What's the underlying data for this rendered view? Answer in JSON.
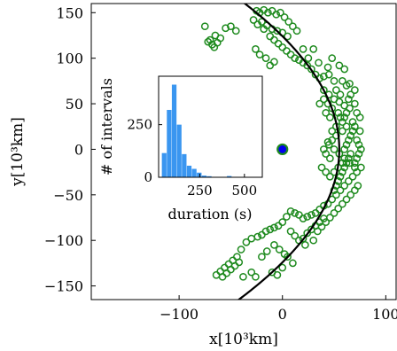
{
  "chart_data": [
    {
      "type": "scatter",
      "xlabel": "x[10³km]",
      "ylabel": "y[10³km]",
      "xlim": [
        -185,
        110
      ],
      "ylim": [
        -165,
        160
      ],
      "xticks": [
        -100,
        0,
        100
      ],
      "yticks": [
        -150,
        -100,
        -50,
        0,
        50,
        100,
        150
      ],
      "xtick_labels": [
        "−100",
        "0",
        "100"
      ],
      "ytick_labels": [
        "−150",
        "−100",
        "−50",
        "0",
        "50",
        "100",
        "150"
      ],
      "grid": false,
      "colors": {
        "points": "#1e8a1e",
        "curve": "#000000",
        "planet_fill": "#0000ee",
        "planet_edge": "#1e8a1e"
      },
      "series": [
        {
          "kind": "points",
          "marker": "hollow-circle",
          "points": [
            [
              -75,
              135
            ],
            [
              -65,
              125
            ],
            [
              -70,
              120
            ],
            [
              -68,
              115
            ],
            [
              -72,
              118
            ],
            [
              -66,
              112
            ],
            [
              -63,
              117
            ],
            [
              -60,
              122
            ],
            [
              -55,
              133
            ],
            [
              -50,
              135
            ],
            [
              -45,
              130
            ],
            [
              -25,
              152
            ],
            [
              -22,
              150
            ],
            [
              -18,
              153
            ],
            [
              -14,
              150
            ],
            [
              -10,
              152
            ],
            [
              -6,
              148
            ],
            [
              -2,
              150
            ],
            [
              2,
              145
            ],
            [
              6,
              140
            ],
            [
              10,
              135
            ],
            [
              14,
              130
            ],
            [
              -20,
              140
            ],
            [
              -15,
              136
            ],
            [
              -10,
              132
            ],
            [
              -5,
              130
            ],
            [
              0,
              128
            ],
            [
              5,
              124
            ],
            [
              -28,
              142
            ],
            [
              -24,
              137
            ],
            [
              -18,
              132
            ],
            [
              -12,
              124
            ],
            [
              -8,
              120
            ],
            [
              -4,
              116
            ],
            [
              0,
              112
            ],
            [
              4,
              108
            ],
            [
              8,
              104
            ],
            [
              12,
              100
            ],
            [
              16,
              98
            ],
            [
              20,
              95
            ],
            [
              24,
              92
            ],
            [
              28,
              88
            ],
            [
              32,
              82
            ],
            [
              36,
              78
            ],
            [
              40,
              80
            ],
            [
              44,
              90
            ],
            [
              48,
              100
            ],
            [
              55,
              92
            ],
            [
              60,
              88
            ],
            [
              58,
              75
            ],
            [
              62,
              70
            ],
            [
              65,
              72
            ],
            [
              70,
              65
            ],
            [
              -12,
              92
            ],
            [
              -8,
              96
            ],
            [
              -16,
              100
            ],
            [
              -22,
              104
            ],
            [
              -26,
              110
            ],
            [
              30,
              110
            ],
            [
              20,
              110
            ],
            [
              25,
              100
            ],
            [
              35,
              95
            ],
            [
              45,
              82
            ],
            [
              50,
              75
            ],
            [
              40,
              65
            ],
            [
              45,
              60
            ],
            [
              50,
              55
            ],
            [
              55,
              52
            ],
            [
              60,
              48
            ],
            [
              65,
              45
            ],
            [
              70,
              50
            ],
            [
              72,
              40
            ],
            [
              75,
              35
            ],
            [
              68,
              30
            ],
            [
              62,
              25
            ],
            [
              58,
              20
            ],
            [
              52,
              15
            ],
            [
              48,
              10
            ],
            [
              45,
              5
            ],
            [
              50,
              0
            ],
            [
              55,
              -5
            ],
            [
              60,
              -10
            ],
            [
              65,
              -15
            ],
            [
              70,
              -20
            ],
            [
              72,
              -25
            ],
            [
              68,
              -30
            ],
            [
              64,
              -35
            ],
            [
              60,
              -40
            ],
            [
              56,
              -45
            ],
            [
              52,
              -50
            ],
            [
              48,
              -55
            ],
            [
              44,
              -60
            ],
            [
              40,
              -62
            ],
            [
              36,
              -66
            ],
            [
              32,
              -70
            ],
            [
              28,
              -72
            ],
            [
              24,
              -74
            ],
            [
              20,
              -76
            ],
            [
              16,
              -72
            ],
            [
              12,
              -70
            ],
            [
              8,
              -68
            ],
            [
              4,
              -74
            ],
            [
              0,
              -80
            ],
            [
              -4,
              -84
            ],
            [
              -8,
              -86
            ],
            [
              -12,
              -88
            ],
            [
              -16,
              -90
            ],
            [
              -20,
              -94
            ],
            [
              -24,
              -96
            ],
            [
              8,
              -90
            ],
            [
              12,
              -95
            ],
            [
              16,
              -100
            ],
            [
              20,
              -98
            ],
            [
              24,
              -92
            ],
            [
              28,
              -88
            ],
            [
              32,
              -84
            ],
            [
              36,
              -80
            ],
            [
              40,
              -76
            ],
            [
              30,
              -100
            ],
            [
              22,
              -105
            ],
            [
              -30,
              -98
            ],
            [
              -35,
              -102
            ],
            [
              -40,
              -110
            ],
            [
              -44,
              -118
            ],
            [
              -48,
              -122
            ],
            [
              -52,
              -126
            ],
            [
              -56,
              -130
            ],
            [
              -60,
              -134
            ],
            [
              -64,
              -138
            ],
            [
              -58,
              -140
            ],
            [
              -54,
              -136
            ],
            [
              -50,
              -132
            ],
            [
              -46,
              -128
            ],
            [
              -42,
              -124
            ],
            [
              -38,
              -140
            ],
            [
              -30,
              -135
            ],
            [
              -26,
              -140
            ],
            [
              -10,
              -135
            ],
            [
              -5,
              -138
            ],
            [
              0,
              -130
            ],
            [
              10,
              -125
            ],
            [
              5,
              -118
            ],
            [
              -15,
              -112
            ],
            [
              -20,
              -118
            ],
            [
              60,
              0
            ],
            [
              62,
              5
            ],
            [
              64,
              10
            ],
            [
              66,
              15
            ],
            [
              68,
              20
            ],
            [
              70,
              25
            ],
            [
              72,
              10
            ],
            [
              74,
              5
            ],
            [
              76,
              0
            ],
            [
              74,
              -5
            ],
            [
              72,
              -10
            ],
            [
              70,
              -15
            ],
            [
              66,
              -5
            ],
            [
              64,
              -10
            ],
            [
              62,
              -15
            ],
            [
              60,
              -20
            ],
            [
              58,
              -25
            ],
            [
              56,
              -30
            ],
            [
              54,
              -35
            ],
            [
              52,
              -40
            ],
            [
              50,
              -45
            ],
            [
              54,
              40
            ],
            [
              56,
              35
            ],
            [
              58,
              30
            ],
            [
              60,
              35
            ],
            [
              62,
              40
            ],
            [
              64,
              55
            ],
            [
              66,
              60
            ],
            [
              48,
              45
            ],
            [
              44,
              50
            ],
            [
              40,
              55
            ],
            [
              36,
              50
            ],
            [
              42,
              40
            ],
            [
              46,
              35
            ],
            [
              38,
              -20
            ],
            [
              42,
              -25
            ],
            [
              46,
              -30
            ],
            [
              50,
              -25
            ],
            [
              54,
              -20
            ],
            [
              58,
              -15
            ],
            [
              46,
              -10
            ],
            [
              42,
              -5
            ],
            [
              40,
              0
            ],
            [
              44,
              8
            ],
            [
              48,
              20
            ],
            [
              52,
              25
            ],
            [
              56,
              60
            ],
            [
              52,
              65
            ],
            [
              75,
              20
            ],
            [
              76,
              -20
            ],
            [
              73,
              -40
            ],
            [
              70,
              -45
            ],
            [
              66,
              -50
            ],
            [
              62,
              -55
            ],
            [
              58,
              -60
            ],
            [
              54,
              -65
            ],
            [
              50,
              -70
            ],
            [
              46,
              -75
            ],
            [
              42,
              -80
            ],
            [
              38,
              -85
            ],
            [
              34,
              -90
            ],
            [
              -8,
              -105
            ],
            [
              -3,
              -110
            ],
            [
              2,
              -115
            ]
          ]
        },
        {
          "kind": "curve",
          "a": 55,
          "b": 0.00357
        },
        {
          "kind": "planet",
          "point": [
            0,
            0
          ]
        }
      ]
    },
    {
      "type": "bar",
      "xlabel": "duration (s)",
      "ylabel": "# of intervals",
      "xlim": [
        20,
        600
      ],
      "ylim": [
        0,
        480
      ],
      "xticks": [
        250,
        500
      ],
      "yticks": [
        0,
        250
      ],
      "xtick_labels": [
        "250",
        "500"
      ],
      "ytick_labels": [
        "0",
        "250"
      ],
      "bin_width": 28,
      "color": "#3a96f0",
      "bins": [
        {
          "left": 38,
          "value": 115
        },
        {
          "left": 66,
          "value": 320
        },
        {
          "left": 94,
          "value": 440
        },
        {
          "left": 122,
          "value": 250
        },
        {
          "left": 150,
          "value": 110
        },
        {
          "left": 178,
          "value": 55
        },
        {
          "left": 206,
          "value": 40
        },
        {
          "left": 234,
          "value": 22
        },
        {
          "left": 262,
          "value": 8
        },
        {
          "left": 290,
          "value": 5
        },
        {
          "left": 402,
          "value": 6
        }
      ]
    }
  ]
}
